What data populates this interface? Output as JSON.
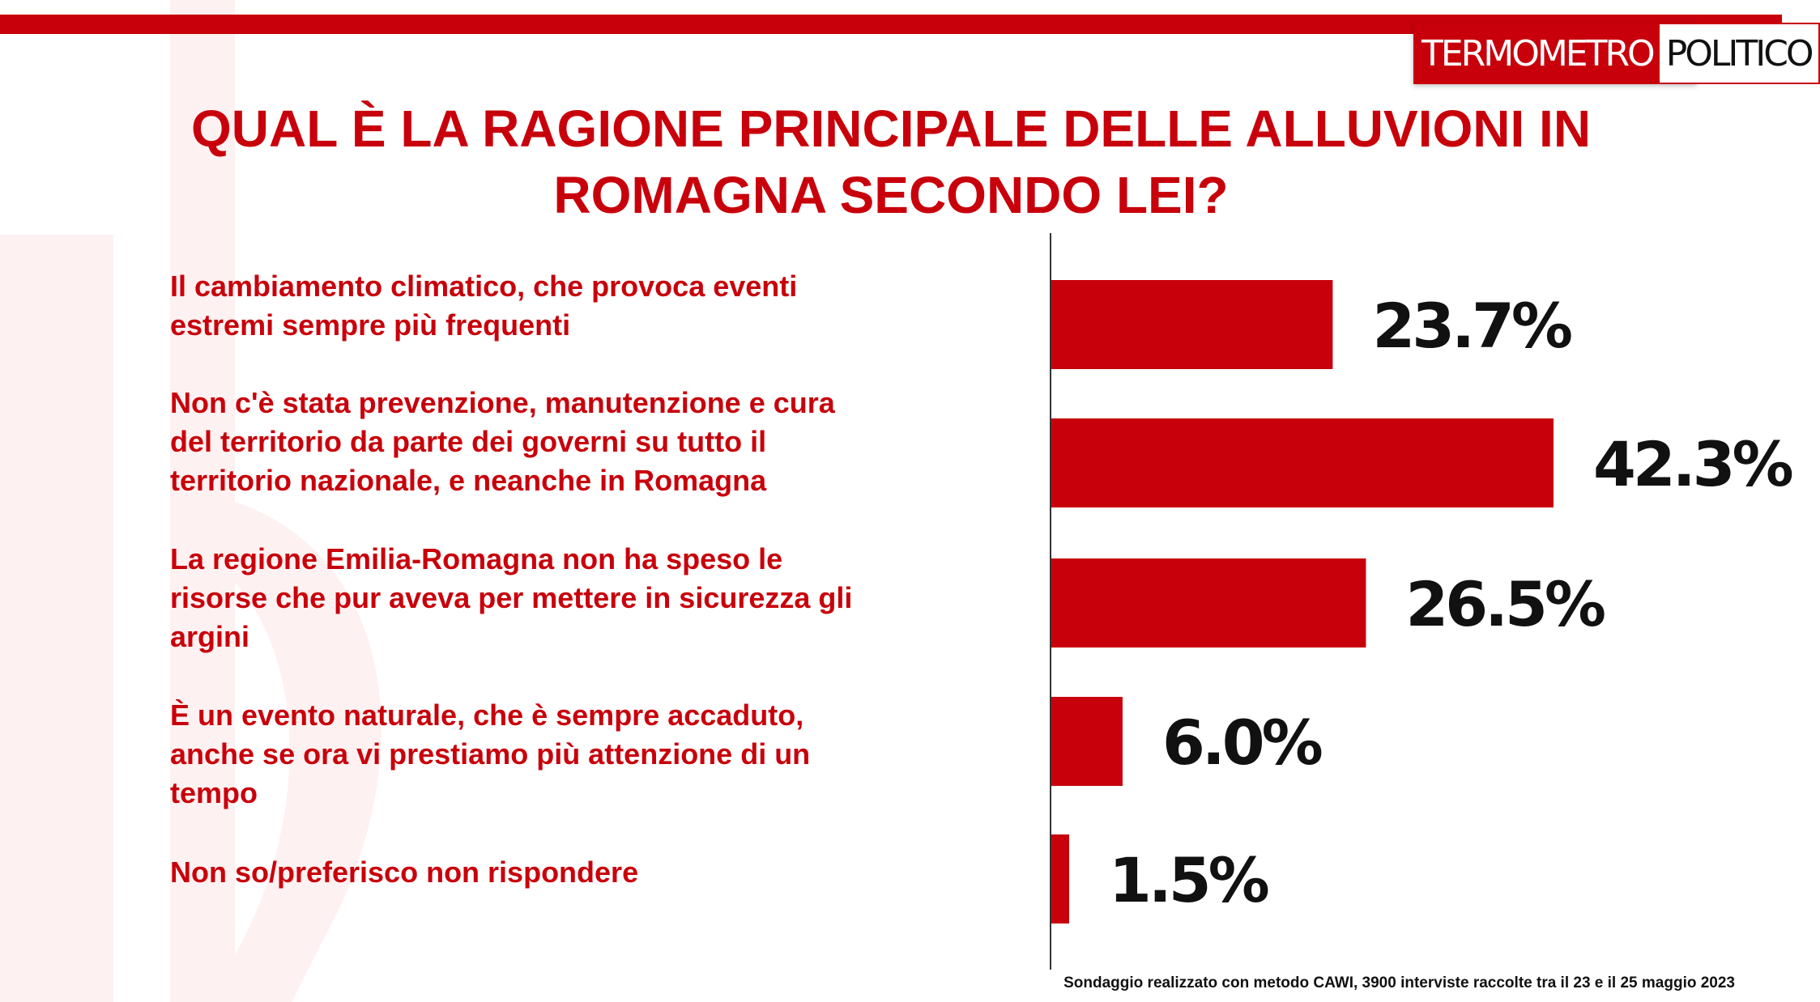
{
  "logo": {
    "left_text": "TERMOMETRO",
    "right_text": "POLITICO"
  },
  "title_lines": [
    "QUAL È LA RAGIONE PRINCIPALE DELLE ALLUVIONI IN",
    "ROMAGNA SECONDO LEI?"
  ],
  "footnote": "Sondaggio realizzato con metodo CAWI, 3900 interviste raccolte tra il 23 e il 25 maggio 2023",
  "colors": {
    "accent": "#c8000b",
    "label": "#111111"
  },
  "chart_data": {
    "type": "bar",
    "orientation": "horizontal",
    "title": "QUAL È LA RAGIONE PRINCIPALE DELLE ALLUVIONI IN ROMAGNA SECONDO LEI?",
    "categories": [
      [
        "Il cambiamento climatico, che provoca eventi",
        "estremi sempre più frequenti"
      ],
      [
        "Non c'è stata prevenzione, manutenzione e cura",
        "del territorio da parte dei governi su tutto il",
        "territorio nazionale, e neanche in Romagna"
      ],
      [
        "La regione Emilia-Romagna non ha speso le",
        "risorse che pur aveva per mettere in sicurezza gli",
        "argini"
      ],
      [
        "È un evento naturale, che è sempre accaduto,",
        "anche se ora vi prestiamo più attenzione di un",
        "tempo"
      ],
      [
        "Non so/preferisco non rispondere"
      ]
    ],
    "values": [
      23.7,
      42.3,
      26.5,
      6.0,
      1.5
    ],
    "value_labels": [
      "23.7%",
      "42.3%",
      "26.5%",
      "6.0%",
      "1.5%"
    ],
    "unit": "%",
    "grid": false,
    "legend": "none"
  }
}
